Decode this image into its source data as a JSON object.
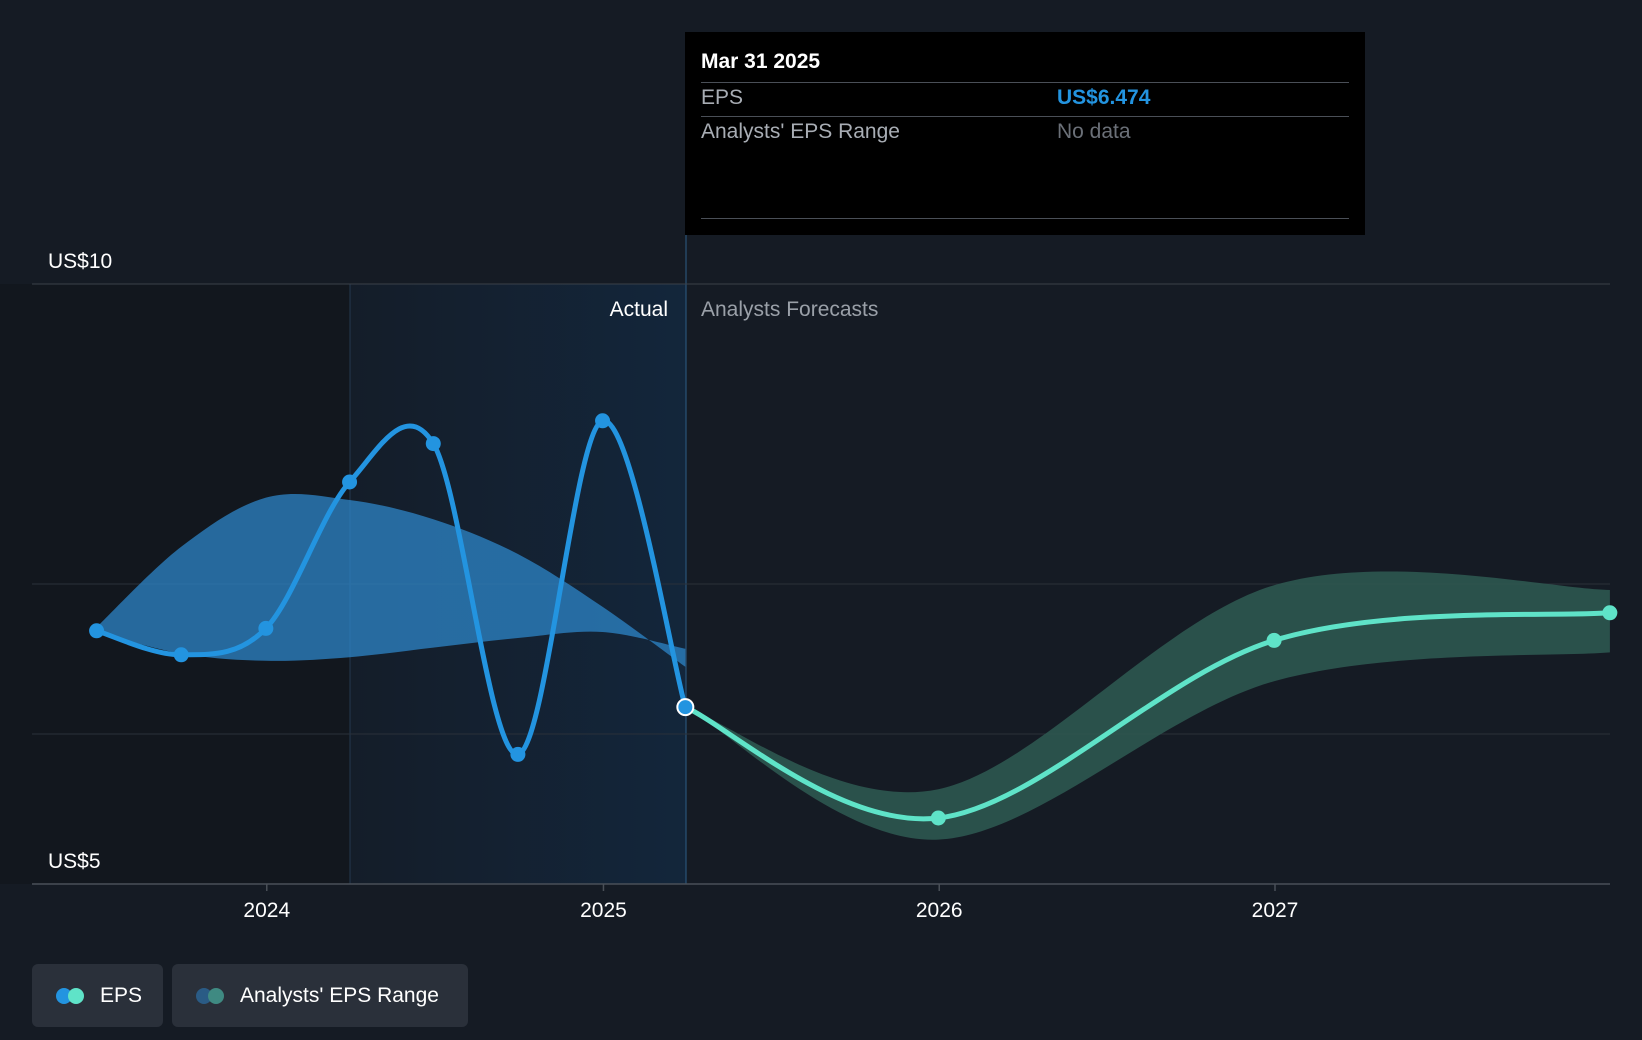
{
  "chart_data": {
    "type": "line",
    "y_axis": {
      "min": 5,
      "max": 10,
      "top_label": "US$10",
      "bottom_label": "US$5"
    },
    "x_ticks": [
      "2024",
      "2025",
      "2026",
      "2027"
    ],
    "regions": {
      "actual_label": "Actual",
      "forecast_label": "Analysts Forecasts"
    },
    "series": [
      {
        "name": "EPS",
        "kind": "actual",
        "color": "#2394e0",
        "points": [
          {
            "x": "2023-06-30",
            "y": 7.11
          },
          {
            "x": "2023-09-30",
            "y": 6.91
          },
          {
            "x": "2023-12-31",
            "y": 7.13
          },
          {
            "x": "2024-03-31",
            "y": 8.35
          },
          {
            "x": "2024-06-30",
            "y": 8.67
          },
          {
            "x": "2024-09-30",
            "y": 6.08
          },
          {
            "x": "2024-12-31",
            "y": 8.86
          },
          {
            "x": "2025-03-31",
            "y": 6.474
          }
        ]
      },
      {
        "name": "EPS",
        "kind": "forecast",
        "color": "#5fe3c8",
        "points": [
          {
            "x": "2025-03-31",
            "y": 6.474
          },
          {
            "x": "2025-12-31",
            "y": 5.55
          },
          {
            "x": "2026-12-31",
            "y": 7.03
          },
          {
            "x": "2027-12-31",
            "y": 7.26
          }
        ]
      }
    ],
    "bands": [
      {
        "name": "Analysts' EPS Range",
        "kind": "actual",
        "color": "#2e86c8",
        "upper": [
          {
            "x": "2023-06-30",
            "y": 7.14
          },
          {
            "x": "2023-09-30",
            "y": 7.81
          },
          {
            "x": "2023-12-31",
            "y": 8.22
          },
          {
            "x": "2024-03-31",
            "y": 8.2
          },
          {
            "x": "2024-06-30",
            "y": 8.04
          },
          {
            "x": "2024-09-30",
            "y": 7.75
          },
          {
            "x": "2024-12-31",
            "y": 7.31
          },
          {
            "x": "2025-03-31",
            "y": 6.81
          }
        ],
        "lower": [
          {
            "x": "2023-06-30",
            "y": 7.1
          },
          {
            "x": "2023-09-30",
            "y": 6.92
          },
          {
            "x": "2023-12-31",
            "y": 6.86
          },
          {
            "x": "2024-03-31",
            "y": 6.89
          },
          {
            "x": "2024-06-30",
            "y": 6.97
          },
          {
            "x": "2024-09-30",
            "y": 7.05
          },
          {
            "x": "2024-12-31",
            "y": 7.1
          },
          {
            "x": "2025-03-31",
            "y": 6.96
          }
        ]
      },
      {
        "name": "Analysts' EPS Range",
        "kind": "forecast",
        "color": "#2e5a52",
        "upper": [
          {
            "x": "2025-03-31",
            "y": 6.474
          },
          {
            "x": "2025-12-31",
            "y": 5.79
          },
          {
            "x": "2026-12-31",
            "y": 7.49
          },
          {
            "x": "2027-12-31",
            "y": 7.45
          }
        ],
        "lower": [
          {
            "x": "2025-03-31",
            "y": 6.474
          },
          {
            "x": "2025-12-31",
            "y": 5.37
          },
          {
            "x": "2026-12-31",
            "y": 6.69
          },
          {
            "x": "2027-12-31",
            "y": 6.93
          }
        ]
      }
    ]
  },
  "tooltip": {
    "date": "Mar 31 2025",
    "eps_key": "EPS",
    "eps_value": "US$6.474",
    "range_key": "Analysts' EPS Range",
    "range_value": "No data"
  },
  "legend": [
    {
      "label": "EPS",
      "colors": [
        "#2394e0",
        "#5fe3c8"
      ]
    },
    {
      "label": "Analysts' EPS Range",
      "colors": [
        "#2a5b85",
        "#3f8a82"
      ]
    }
  ]
}
